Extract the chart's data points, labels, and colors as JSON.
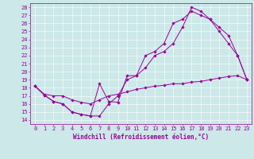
{
  "xlabel": "Windchill (Refroidissement éolien,°C)",
  "bg_color": "#cce8e8",
  "line_color": "#990099",
  "grid_color": "#ffffff",
  "xlim": [
    -0.5,
    23.5
  ],
  "ylim": [
    13.5,
    28.5
  ],
  "yticks": [
    14,
    15,
    16,
    17,
    18,
    19,
    20,
    21,
    22,
    23,
    24,
    25,
    26,
    27,
    28
  ],
  "xticks": [
    0,
    1,
    2,
    3,
    4,
    5,
    6,
    7,
    8,
    9,
    10,
    11,
    12,
    13,
    14,
    15,
    16,
    17,
    18,
    19,
    20,
    21,
    22,
    23
  ],
  "line1_x": [
    0,
    1,
    2,
    3,
    4,
    5,
    6,
    7,
    8,
    9,
    10,
    11,
    12,
    13,
    14,
    15,
    16,
    17,
    18,
    19,
    20,
    21,
    22,
    23
  ],
  "line1_y": [
    18.2,
    17.1,
    16.3,
    16.0,
    15.0,
    14.7,
    14.5,
    18.5,
    16.3,
    16.2,
    19.5,
    19.5,
    20.5,
    22.0,
    22.5,
    23.5,
    25.5,
    28.0,
    27.5,
    26.5,
    25.0,
    23.5,
    22.0,
    19.0
  ],
  "line2_x": [
    0,
    1,
    2,
    3,
    4,
    5,
    6,
    7,
    8,
    9,
    10,
    11,
    12,
    13,
    14,
    15,
    16,
    17,
    18,
    19,
    20,
    21,
    22,
    23
  ],
  "line2_y": [
    18.2,
    17.1,
    16.3,
    16.0,
    15.0,
    14.7,
    14.5,
    14.5,
    16.0,
    17.0,
    19.0,
    19.5,
    22.0,
    22.5,
    23.5,
    26.0,
    26.5,
    27.5,
    27.0,
    26.5,
    25.5,
    24.5,
    22.0,
    19.0
  ],
  "line3_x": [
    0,
    1,
    2,
    3,
    4,
    5,
    6,
    7,
    8,
    9,
    10,
    11,
    12,
    13,
    14,
    15,
    16,
    17,
    18,
    19,
    20,
    21,
    22,
    23
  ],
  "line3_y": [
    18.2,
    17.2,
    17.0,
    17.0,
    16.5,
    16.2,
    16.0,
    16.5,
    17.0,
    17.2,
    17.5,
    17.8,
    18.0,
    18.2,
    18.3,
    18.5,
    18.5,
    18.7,
    18.8,
    19.0,
    19.2,
    19.4,
    19.5,
    19.0
  ],
  "tick_fontsize": 5.0,
  "xlabel_fontsize": 5.5
}
